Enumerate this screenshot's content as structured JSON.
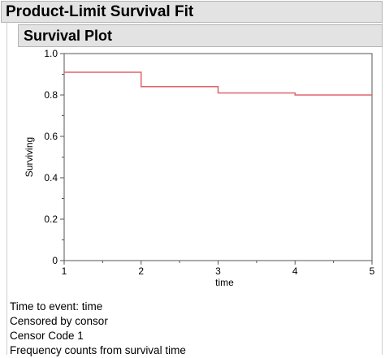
{
  "report": {
    "title": "Product-Limit Survival Fit"
  },
  "survival_plot": {
    "title": "Survival Plot"
  },
  "chart_data": {
    "type": "line",
    "title": "",
    "xlabel": "time",
    "ylabel": "Surviving",
    "xlim": [
      1,
      5
    ],
    "ylim": [
      0,
      1.0
    ],
    "x_ticks": [
      "1",
      "2",
      "3",
      "4",
      "5"
    ],
    "y_ticks": [
      "0",
      "0.2",
      "0.4",
      "0.6",
      "0.8",
      "1.0"
    ],
    "grid": false,
    "step": true,
    "series": [
      {
        "color": "#e0636b",
        "x": [
          1,
          2,
          3,
          4,
          5
        ],
        "y": [
          0.91,
          0.84,
          0.81,
          0.8,
          0.8
        ]
      }
    ]
  },
  "info_lines": {
    "event": "Time to event:  time",
    "censored": "Censored by  consor",
    "code": "Censor Code  1",
    "freq": "Frequency counts from survival time"
  }
}
